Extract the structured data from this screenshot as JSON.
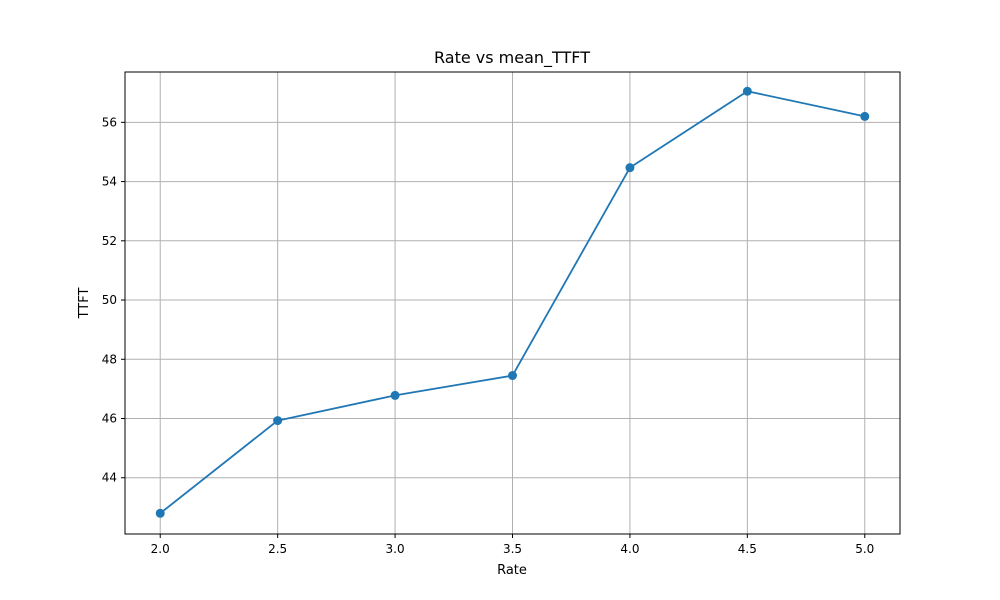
{
  "chart_data": {
    "type": "line",
    "title": "Rate vs mean_TTFT",
    "xlabel": "Rate",
    "ylabel": "TTFT",
    "x": [
      2.0,
      2.5,
      3.0,
      3.5,
      4.0,
      4.5,
      5.0
    ],
    "series": [
      {
        "values": [
          42.8,
          45.93,
          46.78,
          47.45,
          54.47,
          57.05,
          56.2
        ]
      }
    ],
    "xlim": [
      1.85,
      5.15
    ],
    "ylim": [
      42.1,
      57.7
    ],
    "xticks": [
      2.0,
      2.5,
      3.0,
      3.5,
      4.0,
      4.5,
      5.0
    ],
    "xtick_labels": [
      "2.0",
      "2.5",
      "3.0",
      "3.5",
      "4.0",
      "4.5",
      "5.0"
    ],
    "yticks": [
      44,
      46,
      48,
      50,
      52,
      54,
      56
    ],
    "ytick_labels": [
      "44",
      "46",
      "48",
      "50",
      "52",
      "54",
      "56"
    ],
    "grid": true,
    "marker": "circle",
    "line_color": "#1f77b4"
  }
}
